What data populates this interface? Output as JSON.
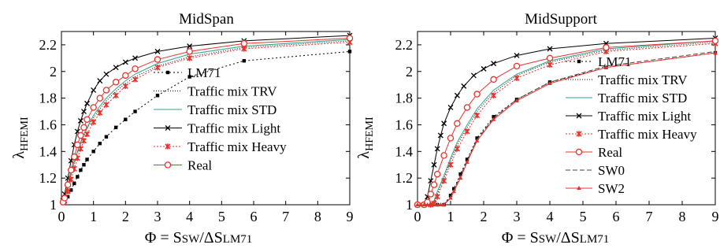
{
  "figure": {
    "xlabel_prefix": "Φ = ",
    "xlabel_var": "S",
    "xlabel_sub1": "SW",
    "xlabel_mid": "/ΔS",
    "xlabel_sub2": "LM71",
    "ylabel_main": "λ",
    "ylabel_sub": "HFEMI"
  },
  "chart_data": [
    {
      "type": "line",
      "title": "MidSpan",
      "xlabel": "Φ = SSW/ΔSLM71",
      "ylabel": "λHFEMI",
      "xlim": [
        0,
        9
      ],
      "ylim": [
        1,
        2.3
      ],
      "xticks": [
        0,
        1,
        2,
        3,
        4,
        5,
        6,
        7,
        8,
        9
      ],
      "yticks": [
        1,
        1.2,
        1.4,
        1.6,
        1.8,
        2,
        2.2
      ],
      "ytick_labels": [
        "1",
        "1.2",
        "1.4",
        "1.6",
        "1.8",
        "2",
        "2.2"
      ],
      "grid": false,
      "legend_position": "center",
      "series": [
        {
          "name": "LM71",
          "color": "#000000",
          "dash": "2,3",
          "marker": "square",
          "x": [
            0.05,
            0.1,
            0.2,
            0.3,
            0.4,
            0.5,
            0.6,
            0.7,
            0.8,
            1.0,
            1.2,
            1.4,
            1.7,
            2.0,
            2.3,
            3.0,
            4.0,
            5.7,
            9.0
          ],
          "y": [
            1.01,
            1.02,
            1.06,
            1.11,
            1.16,
            1.21,
            1.26,
            1.3,
            1.34,
            1.4,
            1.46,
            1.51,
            1.58,
            1.64,
            1.7,
            1.82,
            1.96,
            2.08,
            2.15
          ]
        },
        {
          "name": "Traffic mix TRV",
          "color": "#000000",
          "dash": "1,2",
          "marker": "none",
          "x": [
            0.05,
            0.1,
            0.2,
            0.3,
            0.4,
            0.5,
            0.6,
            0.7,
            0.8,
            1.0,
            1.2,
            1.4,
            1.7,
            2.0,
            2.3,
            3.0,
            4.0,
            5.7,
            9.0
          ],
          "y": [
            1.02,
            1.04,
            1.12,
            1.22,
            1.31,
            1.39,
            1.46,
            1.52,
            1.57,
            1.65,
            1.72,
            1.78,
            1.85,
            1.91,
            1.96,
            2.04,
            2.11,
            2.18,
            2.23
          ]
        },
        {
          "name": "Traffic mix STD",
          "color": "#2ca58d",
          "dash": "none",
          "marker": "none",
          "x": [
            0.05,
            0.1,
            0.2,
            0.3,
            0.4,
            0.5,
            0.6,
            0.7,
            0.8,
            1.0,
            1.2,
            1.4,
            1.7,
            2.0,
            2.3,
            3.0,
            4.0,
            5.7,
            9.0
          ],
          "y": [
            1.02,
            1.04,
            1.13,
            1.23,
            1.32,
            1.4,
            1.47,
            1.53,
            1.58,
            1.67,
            1.74,
            1.8,
            1.87,
            1.93,
            1.98,
            2.06,
            2.13,
            2.19,
            2.24
          ]
        },
        {
          "name": "Traffic mix Light",
          "color": "#000000",
          "dash": "none",
          "marker": "x",
          "x": [
            0.05,
            0.1,
            0.2,
            0.3,
            0.4,
            0.5,
            0.6,
            0.7,
            0.8,
            1.0,
            1.2,
            1.4,
            1.7,
            2.0,
            2.3,
            3.0,
            4.0,
            5.7,
            9.0
          ],
          "y": [
            1.03,
            1.08,
            1.2,
            1.33,
            1.45,
            1.55,
            1.63,
            1.7,
            1.76,
            1.86,
            1.93,
            1.98,
            2.03,
            2.07,
            2.1,
            2.15,
            2.19,
            2.23,
            2.27
          ]
        },
        {
          "name": "Traffic mix Heavy",
          "color": "#e8312b",
          "dash": "2,2",
          "marker": "star",
          "x": [
            0.05,
            0.1,
            0.2,
            0.3,
            0.4,
            0.5,
            0.6,
            0.7,
            0.8,
            1.0,
            1.2,
            1.4,
            1.7,
            2.0,
            2.3,
            3.0,
            4.0,
            5.7,
            9.0
          ],
          "y": [
            1.02,
            1.03,
            1.1,
            1.19,
            1.27,
            1.35,
            1.42,
            1.48,
            1.53,
            1.62,
            1.69,
            1.75,
            1.82,
            1.89,
            1.94,
            2.03,
            2.1,
            2.17,
            2.22
          ]
        },
        {
          "name": "Real",
          "color": "#e8312b",
          "dash": "none",
          "marker": "circle",
          "x": [
            0.05,
            0.1,
            0.2,
            0.3,
            0.4,
            0.5,
            0.6,
            0.7,
            0.8,
            1.0,
            1.2,
            1.4,
            1.7,
            2.0,
            2.3,
            3.0,
            4.0,
            5.7,
            9.0
          ],
          "y": [
            1.02,
            1.05,
            1.15,
            1.26,
            1.36,
            1.45,
            1.52,
            1.58,
            1.64,
            1.73,
            1.8,
            1.86,
            1.92,
            1.97,
            2.02,
            2.09,
            2.15,
            2.21,
            2.25
          ]
        }
      ]
    },
    {
      "type": "line",
      "title": "MidSupport",
      "xlabel": "Φ = SSW/ΔSLM71",
      "ylabel": "λHFEMI",
      "xlim": [
        0,
        9
      ],
      "ylim": [
        1,
        2.3
      ],
      "xticks": [
        0,
        1,
        2,
        3,
        4,
        5,
        6,
        7,
        8,
        9
      ],
      "yticks": [
        1,
        1.2,
        1.4,
        1.6,
        1.8,
        2,
        2.2
      ],
      "ytick_labels": [
        "1",
        "1.2",
        "1.4",
        "1.6",
        "1.8",
        "2",
        "2.2"
      ],
      "grid": false,
      "legend_position": "center-right",
      "series": [
        {
          "name": "LM71",
          "color": "#000000",
          "dash": "2,3",
          "marker": "square",
          "x": [
            0,
            0.2,
            0.4,
            0.6,
            0.8,
            1.0,
            1.1,
            1.3,
            1.5,
            1.8,
            2.3,
            3.0,
            4.0,
            5.7,
            9.0
          ],
          "y": [
            1.0,
            1.0,
            1.0,
            1.0,
            1.0,
            1.07,
            1.12,
            1.23,
            1.34,
            1.5,
            1.66,
            1.79,
            1.92,
            2.03,
            2.14
          ]
        },
        {
          "name": "Traffic mix TRV",
          "color": "#000000",
          "dash": "1,2",
          "marker": "none",
          "x": [
            0,
            0.2,
            0.4,
            0.5,
            0.6,
            0.8,
            1.0,
            1.2,
            1.5,
            1.8,
            2.3,
            3.0,
            4.0,
            5.7,
            9.0
          ],
          "y": [
            1.0,
            1.0,
            1.0,
            1.02,
            1.08,
            1.2,
            1.33,
            1.45,
            1.58,
            1.7,
            1.84,
            1.97,
            2.07,
            2.16,
            2.22
          ]
        },
        {
          "name": "Traffic mix STD",
          "color": "#2ca58d",
          "dash": "none",
          "marker": "none",
          "x": [
            0,
            0.2,
            0.4,
            0.5,
            0.6,
            0.8,
            1.0,
            1.2,
            1.5,
            1.8,
            2.3,
            3.0,
            4.0,
            5.7,
            9.0
          ],
          "y": [
            1.0,
            1.0,
            1.0,
            1.03,
            1.1,
            1.22,
            1.35,
            1.47,
            1.6,
            1.72,
            1.86,
            1.98,
            2.08,
            2.17,
            2.23
          ]
        },
        {
          "name": "Traffic mix Light",
          "color": "#000000",
          "dash": "none",
          "marker": "x",
          "x": [
            0,
            0.1,
            0.2,
            0.3,
            0.4,
            0.5,
            0.6,
            0.7,
            0.8,
            1.0,
            1.2,
            1.4,
            1.7,
            2.0,
            2.3,
            3.0,
            4.0,
            5.7,
            9.0
          ],
          "y": [
            1.0,
            1.0,
            1.0,
            1.06,
            1.18,
            1.3,
            1.42,
            1.52,
            1.61,
            1.73,
            1.82,
            1.89,
            1.97,
            2.02,
            2.06,
            2.12,
            2.17,
            2.21,
            2.25
          ]
        },
        {
          "name": "Traffic mix Heavy",
          "color": "#e8312b",
          "dash": "2,2",
          "marker": "star",
          "x": [
            0,
            0.2,
            0.4,
            0.5,
            0.6,
            0.8,
            1.0,
            1.2,
            1.5,
            1.8,
            2.3,
            3.0,
            4.0,
            5.7,
            9.0
          ],
          "y": [
            1.0,
            1.0,
            1.0,
            1.01,
            1.06,
            1.18,
            1.3,
            1.42,
            1.55,
            1.67,
            1.82,
            1.95,
            2.05,
            2.15,
            2.21
          ]
        },
        {
          "name": "Real",
          "color": "#e8312b",
          "dash": "none",
          "marker": "circle",
          "x": [
            0,
            0.2,
            0.3,
            0.4,
            0.5,
            0.6,
            0.8,
            1.0,
            1.2,
            1.5,
            1.8,
            2.3,
            3.0,
            4.0,
            5.7,
            9.0
          ],
          "y": [
            1.0,
            1.0,
            1.02,
            1.08,
            1.15,
            1.23,
            1.37,
            1.5,
            1.61,
            1.73,
            1.83,
            1.94,
            2.04,
            2.1,
            2.18,
            2.23
          ]
        },
        {
          "name": "SW0",
          "color": "#444444",
          "dash": "6,3",
          "marker": "none",
          "x": [
            0,
            0.2,
            0.4,
            0.6,
            0.8,
            1.0,
            1.1,
            1.3,
            1.5,
            1.8,
            2.3,
            3.0,
            4.0,
            5.7,
            9.0
          ],
          "y": [
            1.0,
            1.0,
            1.0,
            1.0,
            1.0,
            1.06,
            1.11,
            1.22,
            1.33,
            1.49,
            1.65,
            1.79,
            1.92,
            2.04,
            2.15
          ]
        },
        {
          "name": "SW2",
          "color": "#e8312b",
          "dash": "none",
          "marker": "tri",
          "x": [
            0,
            0.1,
            0.2,
            0.3,
            0.4,
            0.5,
            0.6,
            0.7,
            0.8,
            1.0,
            1.1,
            1.3,
            1.5,
            1.8,
            2.3,
            3.0,
            4.0,
            5.7,
            9.0
          ],
          "y": [
            1.0,
            1.0,
            1.0,
            1.0,
            1.0,
            1.0,
            1.0,
            1.0,
            1.0,
            1.05,
            1.1,
            1.2,
            1.32,
            1.48,
            1.64,
            1.78,
            1.91,
            2.03,
            2.14
          ]
        }
      ]
    }
  ]
}
